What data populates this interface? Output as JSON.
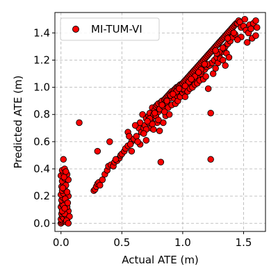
{
  "chart_data": {
    "type": "scatter",
    "xlabel": "Actual ATE (m)",
    "ylabel": "Predicted ATE (m)",
    "xlim": [
      -0.05,
      1.68
    ],
    "ylim": [
      -0.06,
      1.55
    ],
    "x_ticks": [
      "0.0",
      "0.5",
      "1.0",
      "1.5"
    ],
    "x_tick_values": [
      0,
      0.5,
      1.0,
      1.5
    ],
    "y_ticks": [
      "0.0",
      "0.2",
      "0.4",
      "0.6",
      "0.8",
      "1.0",
      "1.2",
      "1.4"
    ],
    "y_tick_values": [
      0,
      0.2,
      0.4,
      0.6,
      0.8,
      1.0,
      1.2,
      1.4
    ],
    "grid": true,
    "legend_position": "top-left",
    "marker_color": "#ff0000",
    "marker_edge_color": "#000000",
    "series": [
      {
        "name": "MI-TUM-VI",
        "points": [
          [
            0.0,
            0.0
          ],
          [
            0.005,
            0.01
          ],
          [
            0.01,
            0.02
          ],
          [
            0.0,
            0.03
          ],
          [
            0.01,
            0.05
          ],
          [
            0.02,
            0.04
          ],
          [
            0.005,
            0.07
          ],
          [
            0.015,
            0.08
          ],
          [
            0.02,
            0.1
          ],
          [
            0.0,
            0.12
          ],
          [
            0.01,
            0.14
          ],
          [
            0.02,
            0.15
          ],
          [
            0.005,
            0.17
          ],
          [
            0.015,
            0.19
          ],
          [
            0.0,
            0.21
          ],
          [
            0.02,
            0.22
          ],
          [
            0.01,
            0.24
          ],
          [
            0.03,
            0.25
          ],
          [
            0.005,
            0.27
          ],
          [
            0.02,
            0.29
          ],
          [
            0.01,
            0.31
          ],
          [
            0.03,
            0.33
          ],
          [
            0.0,
            0.35
          ],
          [
            0.02,
            0.37
          ],
          [
            0.01,
            0.39
          ],
          [
            0.03,
            0.4
          ],
          [
            0.02,
            0.47
          ],
          [
            0.04,
            0.01
          ],
          [
            0.05,
            0.03
          ],
          [
            0.04,
            0.06
          ],
          [
            0.06,
            0.09
          ],
          [
            0.05,
            0.12
          ],
          [
            0.04,
            0.16
          ],
          [
            0.06,
            0.2
          ],
          [
            0.05,
            0.23
          ],
          [
            0.04,
            0.28
          ],
          [
            0.06,
            0.32
          ],
          [
            0.05,
            0.36
          ],
          [
            0.03,
            0.07
          ],
          [
            0.07,
            0.05
          ],
          [
            0.02,
            0.13
          ],
          [
            0.035,
            0.18
          ],
          [
            0.045,
            0.02
          ],
          [
            0.015,
            0.26
          ],
          [
            0.055,
            0.15
          ],
          [
            0.025,
            0.34
          ],
          [
            0.04,
            0.38
          ],
          [
            0.01,
            0.09
          ],
          [
            0.03,
            0.11
          ],
          [
            0.06,
            0.0
          ],
          [
            0.15,
            0.74
          ],
          [
            0.27,
            0.24
          ],
          [
            0.28,
            0.25
          ],
          [
            0.29,
            0.27
          ],
          [
            0.3,
            0.29
          ],
          [
            0.31,
            0.3
          ],
          [
            0.32,
            0.28
          ],
          [
            0.3,
            0.53
          ],
          [
            0.34,
            0.32
          ],
          [
            0.36,
            0.36
          ],
          [
            0.38,
            0.39
          ],
          [
            0.39,
            0.42
          ],
          [
            0.41,
            0.43
          ],
          [
            0.43,
            0.42
          ],
          [
            0.44,
            0.45
          ],
          [
            0.46,
            0.46
          ],
          [
            0.48,
            0.48
          ],
          [
            0.49,
            0.5
          ],
          [
            0.5,
            0.51
          ],
          [
            0.52,
            0.53
          ],
          [
            0.53,
            0.55
          ],
          [
            0.55,
            0.67
          ],
          [
            0.56,
            0.64
          ],
          [
            0.55,
            0.57
          ],
          [
            0.58,
            0.6
          ],
          [
            0.58,
            0.53
          ],
          [
            0.4,
            0.6
          ],
          [
            0.45,
            0.47
          ],
          [
            0.6,
            0.62
          ],
          [
            0.62,
            0.64
          ],
          [
            0.64,
            0.7
          ],
          [
            0.65,
            0.58
          ],
          [
            0.65,
            0.74
          ],
          [
            0.66,
            0.67
          ],
          [
            0.67,
            0.8
          ],
          [
            0.68,
            0.7
          ],
          [
            0.69,
            0.72
          ],
          [
            0.7,
            0.77
          ],
          [
            0.7,
            0.61
          ],
          [
            0.72,
            0.74
          ],
          [
            0.72,
            0.79
          ],
          [
            0.73,
            0.81
          ],
          [
            0.74,
            0.76
          ],
          [
            0.74,
            0.7
          ],
          [
            0.75,
            0.85
          ],
          [
            0.75,
            0.78
          ],
          [
            0.76,
            0.8
          ],
          [
            0.76,
            0.69
          ],
          [
            0.77,
            0.83
          ],
          [
            0.78,
            0.86
          ],
          [
            0.78,
            0.79
          ],
          [
            0.79,
            0.87
          ],
          [
            0.79,
            0.74
          ],
          [
            0.8,
            0.88
          ],
          [
            0.8,
            0.82
          ],
          [
            0.81,
            0.84
          ],
          [
            0.81,
            0.68
          ],
          [
            0.82,
            0.89
          ],
          [
            0.82,
            0.45
          ],
          [
            0.83,
            0.9
          ],
          [
            0.84,
            0.86
          ],
          [
            0.84,
            0.74
          ],
          [
            0.85,
            0.91
          ],
          [
            0.85,
            0.88
          ],
          [
            0.86,
            0.92
          ],
          [
            0.86,
            0.79
          ],
          [
            0.87,
            0.93
          ],
          [
            0.87,
            0.89
          ],
          [
            0.88,
            0.94
          ],
          [
            0.88,
            0.85
          ],
          [
            0.89,
            0.95
          ],
          [
            0.89,
            0.8
          ],
          [
            0.9,
            0.96
          ],
          [
            0.9,
            0.92
          ],
          [
            0.91,
            0.97
          ],
          [
            0.91,
            0.87
          ],
          [
            0.92,
            0.96
          ],
          [
            0.93,
            0.98
          ],
          [
            0.93,
            0.92
          ],
          [
            0.94,
            0.99
          ],
          [
            0.94,
            0.88
          ],
          [
            0.95,
            1.0
          ],
          [
            0.95,
            0.94
          ],
          [
            0.96,
            1.0
          ],
          [
            0.96,
            0.9
          ],
          [
            0.97,
            1.01
          ],
          [
            0.97,
            0.95
          ],
          [
            0.98,
            1.02
          ],
          [
            0.98,
            0.93
          ],
          [
            0.99,
            1.02
          ],
          [
            0.99,
            0.97
          ],
          [
            1.0,
            1.03
          ],
          [
            1.0,
            0.96
          ],
          [
            1.01,
            1.04
          ],
          [
            1.01,
            0.98
          ],
          [
            1.02,
            1.05
          ],
          [
            1.02,
            0.93
          ],
          [
            1.03,
            1.06
          ],
          [
            1.03,
            1.0
          ],
          [
            1.04,
            1.07
          ],
          [
            1.04,
            0.97
          ],
          [
            1.05,
            1.08
          ],
          [
            1.05,
            1.02
          ],
          [
            1.06,
            1.09
          ],
          [
            1.06,
            0.99
          ],
          [
            1.07,
            1.1
          ],
          [
            1.07,
            1.04
          ],
          [
            1.08,
            1.11
          ],
          [
            1.08,
            1.0
          ],
          [
            1.09,
            1.12
          ],
          [
            1.09,
            1.05
          ],
          [
            1.1,
            1.13
          ],
          [
            1.1,
            1.02
          ],
          [
            1.11,
            1.14
          ],
          [
            1.11,
            1.07
          ],
          [
            1.12,
            1.15
          ],
          [
            1.12,
            1.03
          ],
          [
            1.13,
            1.16
          ],
          [
            1.13,
            1.09
          ],
          [
            1.14,
            1.17
          ],
          [
            1.14,
            1.05
          ],
          [
            1.15,
            1.18
          ],
          [
            1.15,
            1.1
          ],
          [
            1.16,
            1.19
          ],
          [
            1.16,
            1.12
          ],
          [
            1.17,
            1.2
          ],
          [
            1.17,
            1.06
          ],
          [
            1.18,
            1.21
          ],
          [
            1.18,
            1.13
          ],
          [
            1.19,
            1.22
          ],
          [
            1.19,
            1.08
          ],
          [
            1.2,
            1.23
          ],
          [
            1.2,
            1.15
          ],
          [
            1.21,
            1.24
          ],
          [
            1.21,
            0.99
          ],
          [
            1.22,
            1.25
          ],
          [
            1.22,
            1.16
          ],
          [
            1.23,
            1.26
          ],
          [
            1.23,
            0.47
          ],
          [
            1.23,
            0.81
          ],
          [
            1.24,
            1.27
          ],
          [
            1.24,
            1.18
          ],
          [
            1.25,
            1.28
          ],
          [
            1.25,
            1.1
          ],
          [
            1.26,
            1.29
          ],
          [
            1.26,
            1.2
          ],
          [
            1.27,
            1.3
          ],
          [
            1.27,
            1.14
          ],
          [
            1.28,
            1.31
          ],
          [
            1.28,
            1.22
          ],
          [
            1.29,
            1.32
          ],
          [
            1.29,
            1.18
          ],
          [
            1.3,
            1.33
          ],
          [
            1.3,
            1.24
          ],
          [
            1.31,
            1.34
          ],
          [
            1.31,
            1.21
          ],
          [
            1.32,
            1.35
          ],
          [
            1.32,
            1.26
          ],
          [
            1.33,
            1.36
          ],
          [
            1.33,
            1.2
          ],
          [
            1.34,
            1.37
          ],
          [
            1.34,
            1.28
          ],
          [
            1.35,
            1.38
          ],
          [
            1.35,
            1.3
          ],
          [
            1.36,
            1.39
          ],
          [
            1.36,
            1.25
          ],
          [
            1.37,
            1.4
          ],
          [
            1.37,
            1.32
          ],
          [
            1.38,
            1.41
          ],
          [
            1.38,
            1.22
          ],
          [
            1.39,
            1.42
          ],
          [
            1.39,
            1.34
          ],
          [
            1.4,
            1.43
          ],
          [
            1.41,
            1.44
          ],
          [
            1.41,
            1.37
          ],
          [
            1.42,
            1.45
          ],
          [
            1.43,
            1.46
          ],
          [
            1.43,
            1.39
          ],
          [
            1.44,
            1.47
          ],
          [
            1.45,
            1.47
          ],
          [
            1.46,
            1.49
          ],
          [
            1.47,
            1.48
          ],
          [
            1.48,
            1.44
          ],
          [
            1.48,
            1.37
          ],
          [
            1.5,
            1.45
          ],
          [
            1.52,
            1.42
          ],
          [
            1.54,
            1.4
          ],
          [
            1.55,
            1.46
          ],
          [
            1.56,
            1.43
          ],
          [
            1.57,
            1.36
          ],
          [
            1.58,
            1.47
          ],
          [
            1.6,
            1.49
          ],
          [
            1.61,
            1.44
          ],
          [
            1.6,
            1.38
          ],
          [
            1.51,
            1.5
          ],
          [
            1.53,
            1.33
          ],
          [
            1.45,
            1.35
          ],
          [
            1.35,
            1.16
          ],
          [
            1.3,
            1.26
          ],
          [
            1.28,
            1.25
          ],
          [
            1.2,
            1.17
          ],
          [
            1.15,
            1.13
          ],
          [
            1.1,
            1.08
          ],
          [
            1.05,
            1.04
          ],
          [
            1.0,
            0.99
          ],
          [
            0.95,
            0.97
          ],
          [
            0.9,
            0.94
          ],
          [
            0.85,
            0.82
          ],
          [
            0.8,
            0.76
          ],
          [
            0.75,
            0.73
          ],
          [
            0.7,
            0.69
          ],
          [
            0.68,
            0.66
          ],
          [
            0.63,
            0.6
          ],
          [
            0.61,
            0.72
          ],
          [
            0.57,
            0.58
          ],
          [
            1.33,
            1.29
          ],
          [
            1.37,
            1.36
          ],
          [
            1.42,
            1.4
          ],
          [
            1.27,
            1.27
          ],
          [
            1.18,
            1.17
          ],
          [
            1.13,
            1.11
          ],
          [
            1.07,
            1.06
          ],
          [
            1.02,
            1.01
          ],
          [
            0.97,
            0.99
          ],
          [
            0.92,
            0.95
          ],
          [
            0.87,
            0.9
          ],
          [
            0.83,
            0.87
          ],
          [
            0.77,
            0.81
          ],
          [
            0.73,
            0.77
          ],
          [
            0.71,
            0.75
          ]
        ]
      }
    ]
  }
}
